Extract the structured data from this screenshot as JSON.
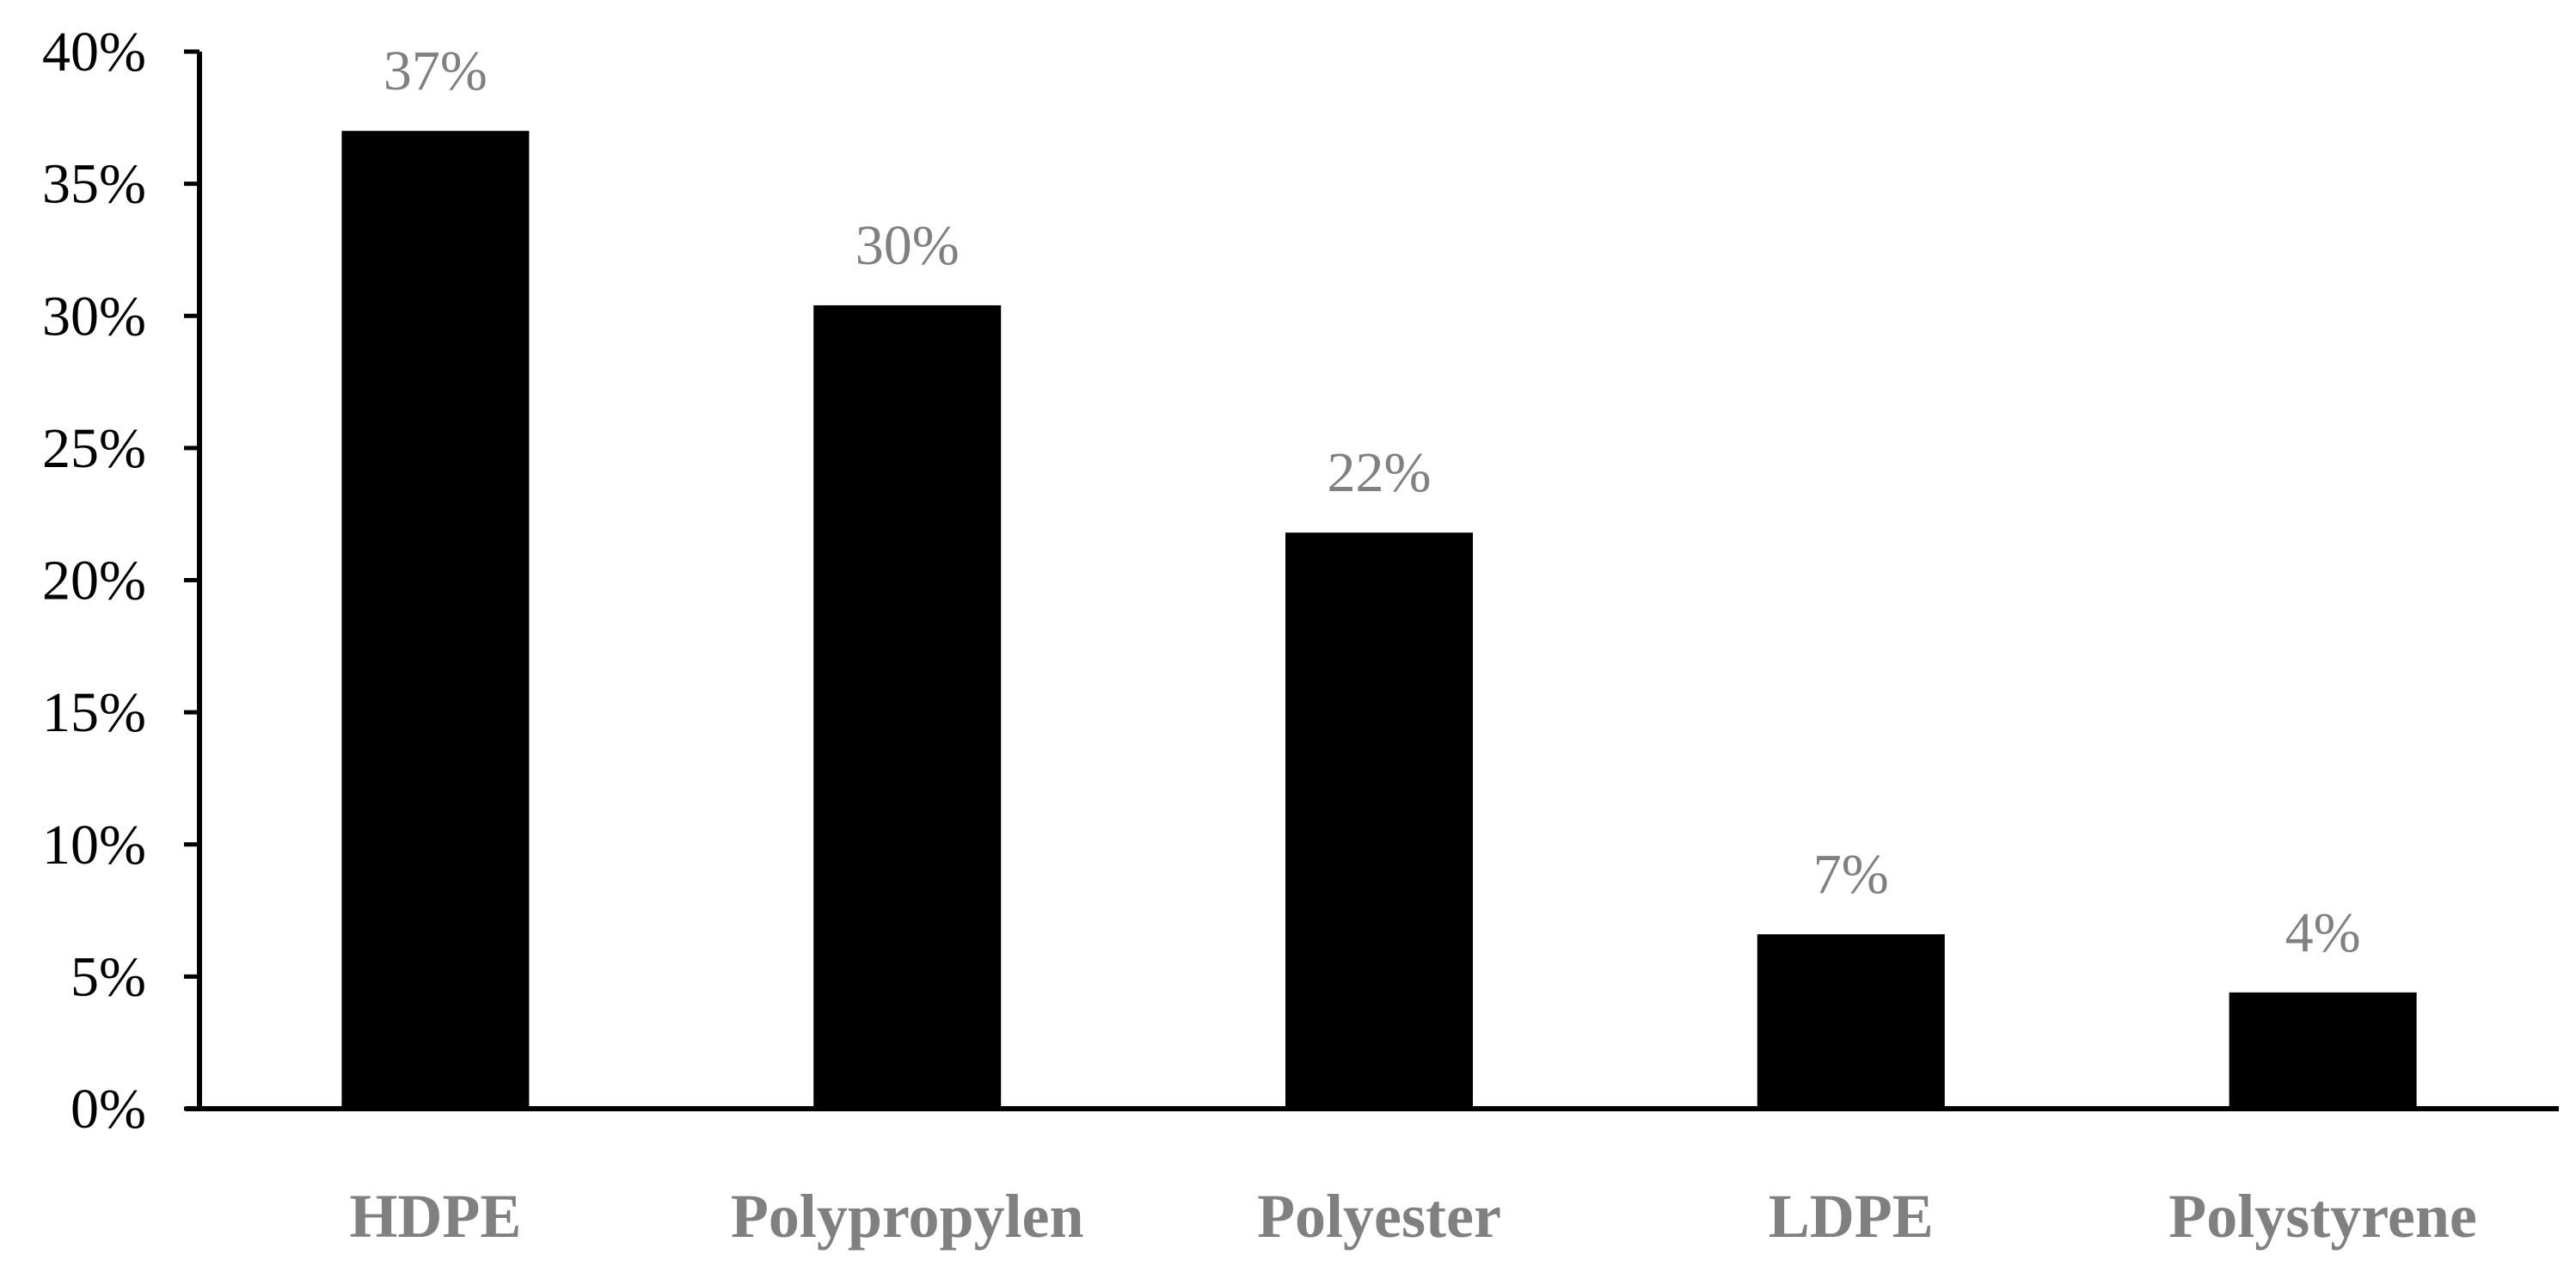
{
  "chart_data": {
    "type": "bar",
    "categories": [
      "HDPE",
      "Polypropylen",
      "Polyester",
      "LDPE",
      "Polystyrene"
    ],
    "values": [
      37,
      30.4,
      21.8,
      6.6,
      4.4
    ],
    "data_labels": [
      "37%",
      "30%",
      "22%",
      "7%",
      "4%"
    ],
    "y_tick_labels": [
      "0%",
      "5%",
      "10%",
      "15%",
      "20%",
      "25%",
      "30%",
      "35%",
      "40%"
    ],
    "y_ticks": [
      0,
      5,
      10,
      15,
      20,
      25,
      30,
      35,
      40
    ],
    "ylim": [
      0,
      40
    ],
    "title": "",
    "xlabel": "",
    "ylabel": "",
    "grid": false,
    "legend": "none",
    "colors": {
      "bar": "#000000",
      "axis": "#000000",
      "data_label": "#808080",
      "category_label": "#808080",
      "tick_label": "#000000"
    }
  }
}
